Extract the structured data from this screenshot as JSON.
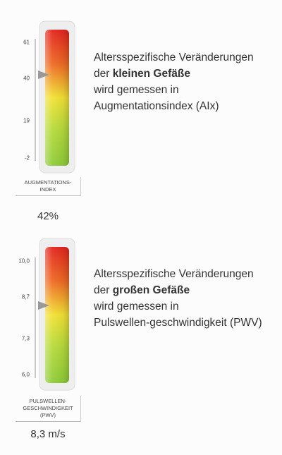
{
  "gauges": [
    {
      "ticks": [
        "61",
        "40",
        "19",
        "-2"
      ],
      "label": [
        "AUGMENTATIONS-",
        "INDEX"
      ],
      "value": "42%",
      "text": {
        "line1": "Altersspezifische Veränderungen",
        "line2_prefix": "der",
        "line2_bold": "kleinen Gefäße",
        "line3": "wird gemessen in",
        "line4": "Augmentationsindex (AIx)"
      }
    },
    {
      "ticks": [
        "10,0",
        "8,7",
        "7,3",
        "6,0"
      ],
      "label": [
        "PULSWELLEN-",
        "GESCHWINDIGKEIT",
        "(PWV)"
      ],
      "value": "8,3 m/s",
      "text": {
        "line1": "Altersspezifische Veränderungen",
        "line2_prefix": "der",
        "line2_bold": "großen Gefäße",
        "line3": "wird gemessen in",
        "line4": "Pulswellen-geschwindigkeit (PWV)"
      }
    }
  ]
}
